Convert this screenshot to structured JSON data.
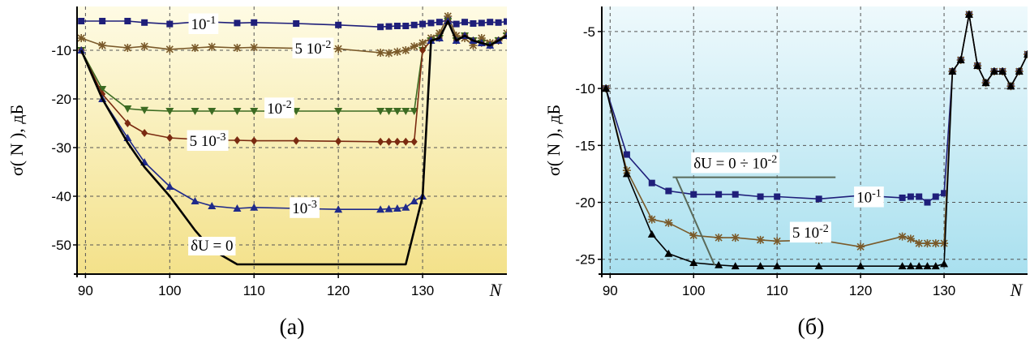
{
  "chart_data": [
    {
      "type": "line",
      "caption": "(а)",
      "xlabel": "N",
      "ylabel": "σ( N ), дБ",
      "xlim": [
        89,
        140
      ],
      "ylim": [
        -56,
        -1
      ],
      "xticks": [
        90,
        100,
        110,
        120,
        130
      ],
      "yticks": [
        -10,
        -20,
        -30,
        -40,
        -50
      ],
      "grid": true,
      "background": [
        "#fefbe4",
        "#f3e18a"
      ],
      "series": [
        {
          "name": "10⁻¹",
          "color": "#1f1f7a",
          "marker": "square",
          "x": [
            89.5,
            92,
            95,
            97,
            100,
            103,
            105,
            108,
            110,
            115,
            120,
            125,
            126,
            127,
            128,
            129,
            130,
            131,
            132,
            133,
            134,
            135,
            136,
            137,
            138,
            139,
            140
          ],
          "y": [
            -4,
            -4,
            -4,
            -4.3,
            -4.6,
            -4.2,
            -4.2,
            -4.4,
            -4.3,
            -4.5,
            -4.8,
            -5.2,
            -5.1,
            -5.0,
            -5.0,
            -4.8,
            -4.6,
            -4.4,
            -4.2,
            -3.8,
            -4.6,
            -4.2,
            -4.5,
            -4.4,
            -4.2,
            -4.3,
            -4.1
          ]
        },
        {
          "name": "5 10⁻²",
          "color": "#7a5a2a",
          "marker": "star",
          "x": [
            89.5,
            92,
            95,
            97,
            100,
            103,
            105,
            108,
            110,
            115,
            120,
            125,
            126,
            127,
            128,
            129,
            130,
            131,
            132,
            133,
            134,
            135,
            136,
            137,
            138,
            139,
            140
          ],
          "y": [
            -7.5,
            -9,
            -9.5,
            -9.2,
            -9.8,
            -9.5,
            -9.3,
            -9.5,
            -9.4,
            -9.6,
            -9.7,
            -10.5,
            -10.6,
            -10.3,
            -10.0,
            -9.2,
            -8.5,
            -7.5,
            -6.5,
            -3,
            -7,
            -7.5,
            -9,
            -7.5,
            -8.5,
            -8,
            -6.5
          ]
        },
        {
          "name": "10⁻²",
          "color": "#3c6b22",
          "marker": "triangle-down",
          "x": [
            89.5,
            92,
            95,
            97,
            100,
            103,
            105,
            108,
            110,
            115,
            120,
            125,
            126,
            127,
            128,
            129,
            130,
            131,
            132,
            133,
            134,
            135,
            136,
            137,
            138,
            139,
            140
          ],
          "y": [
            -10,
            -18,
            -22,
            -22.3,
            -22.5,
            -22.5,
            -22.5,
            -22.5,
            -22.5,
            -22.5,
            -22.5,
            -22.5,
            -22.5,
            -22.5,
            -22.5,
            -22.5,
            -10,
            -8,
            -7.5,
            -4,
            -8,
            -7,
            -8,
            -8.5,
            -9,
            -8,
            -7
          ]
        },
        {
          "name": "5 10⁻³",
          "color": "#7a2a10",
          "marker": "diamond",
          "x": [
            89.5,
            92,
            95,
            97,
            100,
            103,
            105,
            108,
            110,
            115,
            120,
            125,
            126,
            127,
            128,
            129,
            130,
            131,
            132,
            133,
            134,
            135,
            136,
            137,
            138,
            139,
            140
          ],
          "y": [
            -10,
            -19,
            -25,
            -27,
            -28,
            -28.3,
            -28.5,
            -28.5,
            -28.6,
            -28.6,
            -28.7,
            -28.8,
            -28.8,
            -28.8,
            -28.8,
            -28.8,
            -10,
            -8,
            -7.5,
            -4,
            -8,
            -7,
            -8,
            -8.5,
            -9,
            -8,
            -7
          ]
        },
        {
          "name": "10⁻³",
          "color": "#1f2a8a",
          "marker": "triangle",
          "x": [
            89.5,
            92,
            95,
            97,
            100,
            103,
            105,
            108,
            110,
            115,
            120,
            125,
            126,
            127,
            128,
            129,
            130,
            131,
            132,
            133,
            134,
            135,
            136,
            137,
            138,
            139,
            140
          ],
          "y": [
            -10,
            -20,
            -28,
            -33,
            -38,
            -41,
            -42,
            -42.5,
            -42.3,
            -42.5,
            -42.7,
            -42.7,
            -42.6,
            -42.5,
            -42.3,
            -41,
            -40,
            -8,
            -7.5,
            -4,
            -8,
            -7,
            -8,
            -8.5,
            -9,
            -8,
            -7
          ]
        },
        {
          "name": "δU = 0",
          "color": "#000000",
          "marker": "none",
          "x": [
            89.5,
            92,
            95,
            97,
            100,
            103,
            105,
            108,
            110,
            115,
            120,
            125,
            126,
            127,
            128,
            129,
            130,
            131,
            132,
            133,
            134,
            135,
            136,
            137,
            138,
            139,
            140
          ],
          "y": [
            -10,
            -20,
            -29,
            -34,
            -40,
            -47,
            -51,
            -54,
            -54,
            -54,
            -54,
            -54,
            -54,
            -54,
            -54,
            -47,
            -40,
            -8,
            -7.5,
            -4,
            -8,
            -7,
            -8,
            -8.5,
            -9,
            -8,
            -7
          ]
        }
      ],
      "annotations": [
        {
          "text": "10⁻¹",
          "series": "10⁻¹",
          "x": 104,
          "y": -4.5
        },
        {
          "text": "5 10⁻²",
          "series": "5 10⁻²",
          "x": 117,
          "y": -9.5
        },
        {
          "text": "10⁻²",
          "series": "10⁻²",
          "x": 113,
          "y": -21.8
        },
        {
          "text": "5 10⁻³",
          "series": "5 10⁻³",
          "x": 104.5,
          "y": -28.5
        },
        {
          "text": "10⁻³",
          "series": "10⁻³",
          "x": 116,
          "y": -42.3
        },
        {
          "text": "δU = 0",
          "series": "δU = 0",
          "x": 105,
          "y": -50
        }
      ]
    },
    {
      "type": "line",
      "caption": "(б)",
      "xlabel": "N",
      "ylabel": "σ( N ), дБ",
      "xlim": [
        89,
        140
      ],
      "ylim": [
        -26.3,
        -2.8
      ],
      "xticks": [
        90,
        100,
        110,
        120,
        130
      ],
      "yticks": [
        -5,
        -10,
        -15,
        -20,
        -25
      ],
      "grid": true,
      "background": [
        "#eef9fc",
        "#a9e0ef"
      ],
      "series": [
        {
          "name": "10⁻¹",
          "color": "#1f1f7a",
          "marker": "square",
          "x": [
            89.5,
            92,
            95,
            97,
            100,
            103,
            105,
            108,
            110,
            115,
            120,
            125,
            126,
            127,
            128,
            129,
            130,
            131,
            132,
            133,
            134,
            135,
            136,
            137,
            138,
            139,
            140
          ],
          "y": [
            -10,
            -15.8,
            -18.3,
            -19,
            -19.3,
            -19.3,
            -19.3,
            -19.5,
            -19.5,
            -19.7,
            -19.4,
            -19.6,
            -19.5,
            -19.5,
            -20,
            -19.5,
            -19.2,
            -8.5,
            -7.5,
            -3.5,
            -8,
            -9.5,
            -8.5,
            -8.5,
            -9.8,
            -8.5,
            -7
          ]
        },
        {
          "name": "5 10⁻²",
          "color": "#7a5a2a",
          "marker": "star",
          "x": [
            89.5,
            92,
            95,
            97,
            100,
            103,
            105,
            108,
            110,
            115,
            120,
            125,
            126,
            127,
            128,
            129,
            130,
            131,
            132,
            133,
            134,
            135,
            136,
            137,
            138,
            139,
            140
          ],
          "y": [
            -10,
            -17.2,
            -21.5,
            -21.8,
            -22.9,
            -23.1,
            -23.1,
            -23.3,
            -23.4,
            -23.3,
            -23.9,
            -23,
            -23.2,
            -23.6,
            -23.6,
            -23.6,
            -23.6,
            -8.5,
            -7.5,
            -3.5,
            -8,
            -9.5,
            -8.5,
            -8.5,
            -9.8,
            -8.5,
            -7
          ]
        },
        {
          "name": "δU = 0 ÷ 10⁻²",
          "color": "#000000",
          "marker": "triangle",
          "x": [
            89.5,
            92,
            95,
            97,
            100,
            103,
            105,
            108,
            110,
            115,
            120,
            125,
            126,
            127,
            128,
            129,
            130,
            131,
            132,
            133,
            134,
            135,
            136,
            137,
            138,
            139,
            140
          ],
          "y": [
            -10,
            -17.5,
            -22.8,
            -24.5,
            -25.3,
            -25.5,
            -25.6,
            -25.6,
            -25.6,
            -25.6,
            -25.6,
            -25.6,
            -25.6,
            -25.6,
            -25.6,
            -25.6,
            -25.4,
            -8.5,
            -7.5,
            -3.5,
            -8,
            -9.5,
            -8.5,
            -8.5,
            -9.8,
            -8.5,
            -7
          ]
        }
      ],
      "annotations": [
        {
          "text": "10⁻¹",
          "series": "10⁻¹",
          "x": 121,
          "y": -19.5
        },
        {
          "text": "5 10⁻²",
          "series": "5 10⁻²",
          "x": 114,
          "y": -22.6
        },
        {
          "text": "δU = 0 ÷ 10⁻²",
          "series": "δU = 0 ÷ 10⁻²",
          "x": 105,
          "y": -16.5
        }
      ]
    }
  ]
}
